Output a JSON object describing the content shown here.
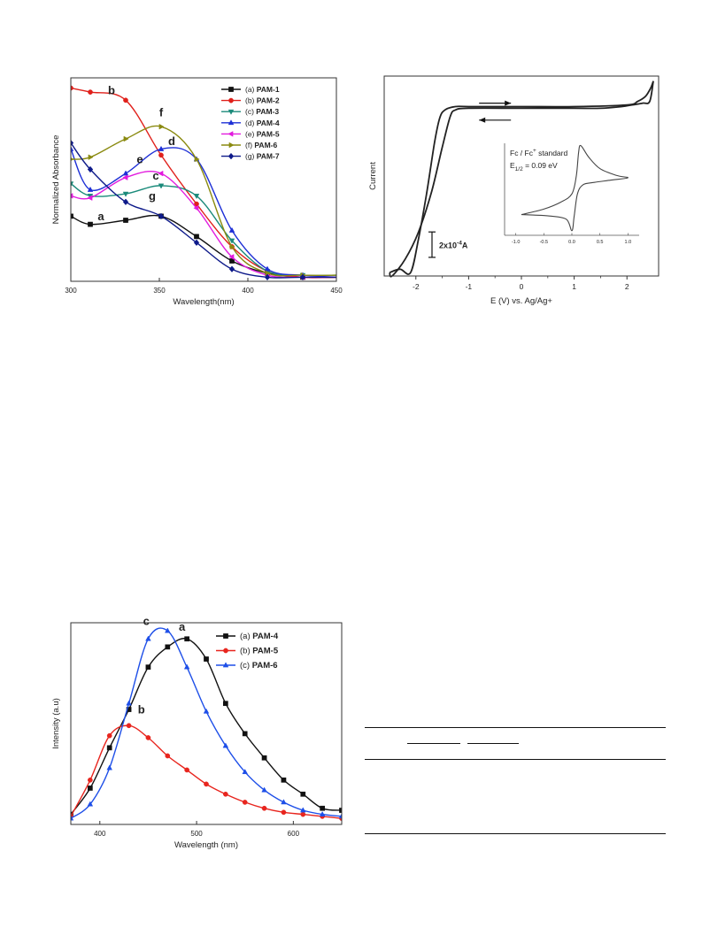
{
  "charts": {
    "uv": {
      "type": "line",
      "xlabel": "Wavelength(nm)",
      "ylabel": "Normalized Absorbance",
      "xlim": [
        300,
        450
      ],
      "ylim": [
        0,
        1.0
      ],
      "xticks": [
        300,
        350,
        400,
        450
      ],
      "legend_placement": "top-right",
      "series": [
        {
          "id": "a",
          "legend": "(a) ",
          "name": "PAM-1",
          "color": "#111111",
          "marker": "square",
          "label_at": [
            317,
            0.3
          ],
          "x": [
            300,
            311,
            331,
            351,
            371,
            391,
            411,
            431,
            451
          ],
          "y": [
            0.32,
            0.28,
            0.3,
            0.32,
            0.22,
            0.1,
            0.04,
            0.02,
            0.02
          ]
        },
        {
          "id": "b",
          "legend": "(b) ",
          "name": "PAM-2",
          "color": "#e0201b",
          "marker": "circle",
          "label_at": [
            323,
            0.92
          ],
          "x": [
            300,
            311,
            331,
            351,
            371,
            391,
            411,
            431,
            451
          ],
          "y": [
            0.95,
            0.93,
            0.89,
            0.62,
            0.38,
            0.17,
            0.05,
            0.02,
            0.02
          ]
        },
        {
          "id": "c",
          "legend": "(c) ",
          "name": "PAM-3",
          "color": "#1a8a7a",
          "marker": "triangle-down",
          "label_at": [
            348,
            0.5
          ],
          "x": [
            300,
            311,
            331,
            351,
            371,
            391,
            411,
            431,
            451
          ],
          "y": [
            0.48,
            0.42,
            0.43,
            0.47,
            0.42,
            0.2,
            0.05,
            0.03,
            0.03
          ]
        },
        {
          "id": "d",
          "legend": "(d) ",
          "name": "PAM-4",
          "color": "#1d2fd6",
          "marker": "triangle-up",
          "label_at": [
            357,
            0.67
          ],
          "x": [
            300,
            311,
            331,
            351,
            371,
            391,
            411,
            431,
            451
          ],
          "y": [
            0.65,
            0.45,
            0.53,
            0.65,
            0.6,
            0.25,
            0.06,
            0.03,
            0.02
          ]
        },
        {
          "id": "e",
          "legend": "(e) ",
          "name": "PAM-5",
          "color": "#e21bde",
          "marker": "triangle-left",
          "label_at": [
            339,
            0.58
          ],
          "x": [
            300,
            311,
            331,
            351,
            371,
            391,
            411,
            431,
            451
          ],
          "y": [
            0.42,
            0.41,
            0.51,
            0.53,
            0.36,
            0.12,
            0.03,
            0.02,
            0.02
          ]
        },
        {
          "id": "f",
          "legend": "(f) ",
          "name": "PAM-6",
          "color": "#8a8a10",
          "marker": "triangle-right",
          "label_at": [
            351,
            0.81
          ],
          "x": [
            300,
            311,
            331,
            351,
            371,
            391,
            411,
            431,
            451
          ],
          "y": [
            0.6,
            0.61,
            0.7,
            0.76,
            0.6,
            0.17,
            0.04,
            0.03,
            0.03
          ]
        },
        {
          "id": "g",
          "legend": "(g) ",
          "name": "PAM-7",
          "color": "#0e1a8a",
          "marker": "diamond",
          "label_at": [
            346,
            0.4
          ],
          "x": [
            300,
            311,
            331,
            351,
            371,
            391,
            411,
            431,
            451
          ],
          "y": [
            0.68,
            0.55,
            0.39,
            0.32,
            0.19,
            0.06,
            0.02,
            0.02,
            0.02
          ]
        }
      ]
    },
    "cv": {
      "type": "line",
      "xlabel": "E (V) vs. Ag/Ag+",
      "ylabel": "Current",
      "xlim": [
        -2.6,
        2.6
      ],
      "ylim": [
        -1.0,
        0.18
      ],
      "xticks": [
        -2,
        -1,
        0,
        1,
        2
      ],
      "scale_bar": "2x10",
      "scale_bar_exp": "-4",
      "scale_bar_unit": "A",
      "scale_bar_value": 0.15,
      "series": [
        {
          "name": "forward",
          "x": [
            -2.5,
            -2.3,
            -2.1,
            -1.95,
            -1.8,
            -1.65,
            -1.55,
            -1.45,
            -1.25,
            -1.0,
            0.0,
            1.0,
            2.0,
            2.2,
            2.35,
            2.45,
            2.5
          ],
          "y": [
            -0.98,
            -0.96,
            -0.98,
            -0.78,
            -0.52,
            -0.22,
            -0.07,
            -0.02,
            0.0,
            0.0,
            0.0,
            0.0,
            0.01,
            0.03,
            0.06,
            0.11,
            0.15
          ]
        },
        {
          "name": "reverse",
          "x": [
            2.5,
            2.43,
            2.3,
            2.1,
            1.9,
            1.5,
            1.0,
            0.0,
            -1.0,
            -1.25,
            -1.35,
            -1.5,
            -1.7,
            -1.95,
            -2.2,
            -2.45,
            -2.5
          ],
          "y": [
            0.15,
            0.03,
            0.02,
            0.01,
            0.0,
            -0.01,
            -0.01,
            -0.01,
            -0.01,
            -0.02,
            -0.06,
            -0.24,
            -0.5,
            -0.74,
            -0.9,
            -1.0,
            -0.98
          ]
        }
      ],
      "arrows": [
        {
          "dir": "right",
          "at": [
            -0.5,
            0.02
          ]
        },
        {
          "dir": "left",
          "at": [
            -0.5,
            -0.08
          ]
        }
      ],
      "inset": {
        "title_prefix": "Fc / Fc",
        "title_sup": "+",
        "title_suffix": " standard",
        "e_half_prefix": "E",
        "e_half_sub": "1/2",
        "e_half_suffix": " = 0.09 eV",
        "xlim": [
          -1.2,
          1.2
        ],
        "ylim": [
          -1.0,
          1.0
        ],
        "xticks": [
          -1.0,
          -0.5,
          0.0,
          0.5,
          1.0
        ],
        "xtick_labels": [
          "-1.0",
          "-0.5",
          "0.0",
          "0.5",
          "1.0"
        ],
        "x": [
          -0.9,
          -0.5,
          -0.2,
          0.0,
          0.08,
          0.12,
          0.16,
          0.3,
          0.5,
          0.8,
          1.0,
          0.7,
          0.4,
          0.2,
          0.1,
          0.04,
          0.0,
          -0.1,
          -0.4,
          -0.7,
          -0.9
        ],
        "y": [
          -0.55,
          -0.43,
          -0.28,
          -0.1,
          0.3,
          0.8,
          0.95,
          0.7,
          0.45,
          0.3,
          0.25,
          0.2,
          0.15,
          0.1,
          -0.1,
          -0.6,
          -0.9,
          -0.65,
          -0.58,
          -0.56,
          -0.55
        ]
      }
    },
    "pl": {
      "type": "line",
      "xlabel": "Wavelength (nm)",
      "ylabel": "Intensity (a.u)",
      "xlim": [
        370,
        650
      ],
      "ylim": [
        0,
        1.0
      ],
      "xticks": [
        400,
        500,
        600
      ],
      "legend_placement": "top-right",
      "series": [
        {
          "id": "a",
          "legend": "(a) ",
          "name": "PAM-4",
          "color": "#111111",
          "marker": "square",
          "label_at": [
            485,
            0.96
          ],
          "x": [
            370,
            390,
            410,
            430,
            450,
            470,
            490,
            510,
            530,
            550,
            570,
            590,
            610,
            630,
            650
          ],
          "y": [
            0.05,
            0.18,
            0.38,
            0.57,
            0.78,
            0.88,
            0.92,
            0.82,
            0.6,
            0.45,
            0.33,
            0.22,
            0.15,
            0.08,
            0.07
          ]
        },
        {
          "id": "b",
          "legend": "(b) ",
          "name": "PAM-5",
          "color": "#e8251e",
          "marker": "circle",
          "label_at": [
            443,
            0.55
          ],
          "x": [
            370,
            390,
            410,
            430,
            450,
            470,
            490,
            510,
            530,
            550,
            570,
            590,
            610,
            630,
            650
          ],
          "y": [
            0.04,
            0.22,
            0.44,
            0.49,
            0.43,
            0.34,
            0.27,
            0.2,
            0.15,
            0.11,
            0.08,
            0.06,
            0.05,
            0.04,
            0.03
          ]
        },
        {
          "id": "c",
          "legend": "(c) ",
          "name": "PAM-6",
          "color": "#1e4fe8",
          "marker": "triangle-up",
          "label_at": [
            448,
            0.99
          ],
          "x": [
            370,
            390,
            410,
            430,
            450,
            470,
            490,
            510,
            530,
            550,
            570,
            590,
            610,
            630,
            650
          ],
          "y": [
            0.03,
            0.1,
            0.28,
            0.6,
            0.92,
            0.96,
            0.78,
            0.56,
            0.39,
            0.26,
            0.17,
            0.11,
            0.07,
            0.05,
            0.04
          ]
        }
      ]
    }
  },
  "table": {
    "note": ""
  }
}
